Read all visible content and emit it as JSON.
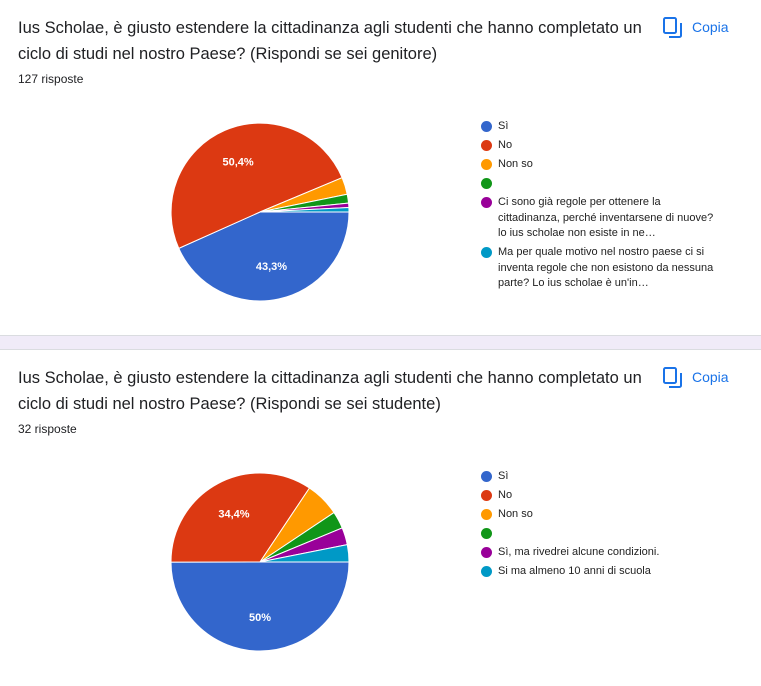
{
  "copy_label": "Copia",
  "questions": [
    {
      "title": "Ius Scholae, è giusto estendere la cittadinanza agli studenti che hanno completato un ciclo di studi nel nostro Paese? (Rispondi se sei genitore)",
      "responses": "127 risposte",
      "legend": [
        "Sì",
        "No",
        "Non so",
        "",
        "Ci sono già regole per ottenere la cittadinanza, perché inventarsene di nuove? lo ius scholae non esiste in ne…",
        "Ma per quale motivo nel nostro paese ci si inventa regole che non esistono da nessuna parte? Lo ius scholae è un'in…"
      ]
    },
    {
      "title": "Ius Scholae, è giusto estendere la cittadinanza agli studenti che hanno completato un ciclo di studi nel nostro Paese? (Rispondi se sei studente)",
      "responses": "32 risposte",
      "legend": [
        "Sì",
        "No",
        "Non so",
        "",
        "Sì, ma rivedrei alcune condizioni.",
        "Si ma almeno 10 anni di scuola"
      ]
    }
  ],
  "colors": [
    "#3366cc",
    "#dc3912",
    "#ff9900",
    "#109618",
    "#990099",
    "#0099c6"
  ],
  "chart_data": [
    {
      "type": "pie",
      "categories": [
        "Sì",
        "No",
        "Non so",
        "",
        "Ci sono già regole per ottenere la cittadinanza, perché inventarsene di nuove? lo ius scholae non esiste in ne…",
        "Ma per quale motivo nel nostro paese ci si inventa regole che non esistono da nessuna parte? Lo ius scholae è un'in…"
      ],
      "values": [
        43.3,
        50.4,
        3.1,
        1.6,
        0.8,
        0.8
      ],
      "data_labels": [
        "43,3%",
        "50,4%",
        "",
        "",
        "",
        ""
      ],
      "legend_position": "right"
    },
    {
      "type": "pie",
      "categories": [
        "Sì",
        "No",
        "Non so",
        "",
        "Sì, ma rivedrei alcune condizioni.",
        "Si ma almeno 10 anni di scuola"
      ],
      "values": [
        50,
        34.4,
        6.25,
        3.125,
        3.125,
        3.125
      ],
      "data_labels": [
        "50%",
        "34,4%",
        "",
        "",
        "",
        ""
      ],
      "legend_position": "right"
    }
  ]
}
